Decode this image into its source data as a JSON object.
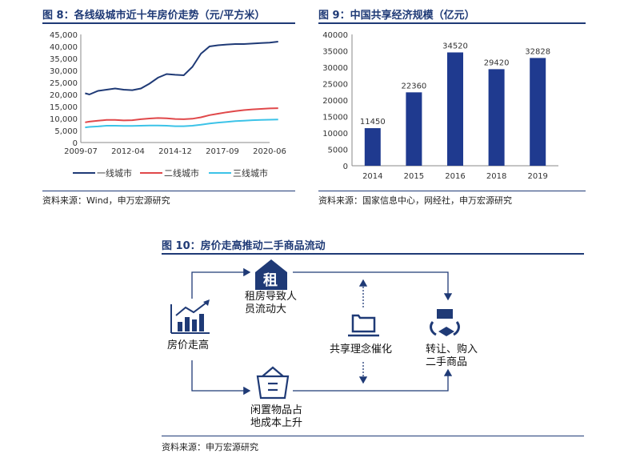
{
  "fig8": {
    "title": "图 8：各线级城市近十年房价走势（元/平方米）",
    "source": "资料来源：Wind，申万宏源研究"
  },
  "fig9": {
    "title": "图 9：中国共享经济规模（亿元）",
    "source": "资料来源：国家信息中心，网经社，申万宏源研究"
  },
  "fig10": {
    "title": "图 10：房价走高推动二手商品流动",
    "source": "资料来源：申万宏源研究",
    "nodes": {
      "rent_icon_char": "租",
      "rent_line1": "租房导致人",
      "rent_line2": "员流动大",
      "price_label": "房价走高",
      "share_label": "共享理念催化",
      "trade_line1": "转让、购入",
      "trade_line2": "二手商品",
      "idle_line1": "闲置物品占",
      "idle_line2": "地成本上升"
    },
    "colors": {
      "icon": "#1f3a76",
      "arrow": "#1f3a76"
    }
  },
  "chart_data": [
    {
      "type": "line",
      "ylim": [
        0,
        45000
      ],
      "yticks": [
        "0",
        "5,000",
        "10,000",
        "15,000",
        "20,000",
        "25,000",
        "30,000",
        "35,000",
        "40,000",
        "45,000"
      ],
      "xticks": [
        "2009-07",
        "2012-04",
        "2014-12",
        "2017-09",
        "2020-06"
      ],
      "x": [
        2009.75,
        2010.0,
        2010.5,
        2011.0,
        2011.5,
        2012.0,
        2012.5,
        2013.0,
        2013.5,
        2014.0,
        2014.5,
        2015.0,
        2015.5,
        2016.0,
        2016.5,
        2017.0,
        2017.5,
        2018.0,
        2018.5,
        2019.0,
        2019.5,
        2020.0,
        2020.5,
        2021.0
      ],
      "series": [
        {
          "name": "一线城市",
          "color": "#1f3a76",
          "values": [
            20500,
            20000,
            21500,
            22000,
            22500,
            22000,
            21800,
            22500,
            24500,
            27000,
            28500,
            28200,
            28000,
            31500,
            37000,
            40000,
            40500,
            40800,
            41000,
            41000,
            41200,
            41400,
            41600,
            42000
          ]
        },
        {
          "name": "二线城市",
          "color": "#e0484a",
          "values": [
            8400,
            8700,
            9100,
            9400,
            9400,
            9200,
            9300,
            9700,
            10000,
            10200,
            10100,
            9800,
            9700,
            9900,
            10500,
            11400,
            12000,
            12600,
            13100,
            13500,
            13800,
            14000,
            14200,
            14300
          ]
        },
        {
          "name": "三线城市",
          "color": "#3cc3e8",
          "values": [
            6300,
            6500,
            6700,
            7000,
            7000,
            6900,
            6900,
            7000,
            7100,
            7100,
            7000,
            6800,
            6800,
            7000,
            7400,
            7900,
            8300,
            8600,
            8900,
            9100,
            9300,
            9400,
            9500,
            9600
          ]
        }
      ],
      "legend_position": "bottom"
    },
    {
      "type": "bar",
      "categories": [
        "2014",
        "2015",
        "2016",
        "2018",
        "2019"
      ],
      "values": [
        11450,
        22360,
        34520,
        29420,
        32828
      ],
      "value_labels": [
        "11450",
        "22360",
        "34520",
        "29420",
        "32828"
      ],
      "ylim": [
        0,
        40000
      ],
      "yticks": [
        "0",
        "5000",
        "10000",
        "15000",
        "20000",
        "25000",
        "30000",
        "35000",
        "40000"
      ],
      "color": "#1f3a8f"
    }
  ]
}
